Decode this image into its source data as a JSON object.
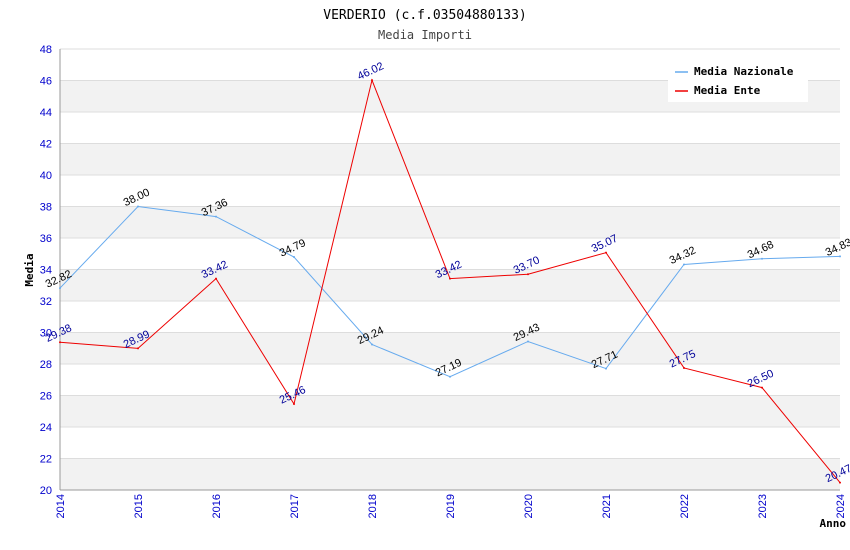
{
  "chart_data": {
    "type": "line",
    "title": "VERDERIO (c.f.03504880133)",
    "subtitle": "Media Importi",
    "xlabel": "Anno",
    "ylabel": "Media",
    "x": [
      "2014",
      "2015",
      "2016",
      "2017",
      "2018",
      "2019",
      "2020",
      "2021",
      "2022",
      "2023",
      "2024"
    ],
    "ylim": [
      20,
      48
    ],
    "yticks": [
      20,
      22,
      24,
      26,
      28,
      30,
      32,
      34,
      36,
      38,
      40,
      42,
      44,
      46,
      48
    ],
    "grid": true,
    "legend_position": "top-right",
    "series": [
      {
        "name": "Media Nazionale",
        "color": "#66aaee",
        "label_color": "#000000",
        "values": [
          32.82,
          38.0,
          37.36,
          34.79,
          29.24,
          27.19,
          29.43,
          27.71,
          34.32,
          34.68,
          34.83
        ],
        "labels": [
          "32.82",
          "38.00",
          "37.36",
          "34.79",
          "29.24",
          "27.19",
          "29.43",
          "27.71",
          "34.32",
          "34.68",
          "34.83"
        ]
      },
      {
        "name": "Media Ente",
        "color": "#ee0000",
        "label_color": "#000099",
        "values": [
          29.38,
          28.99,
          33.42,
          25.46,
          46.02,
          33.42,
          33.7,
          35.07,
          27.75,
          26.5,
          20.47
        ],
        "labels": [
          "29.38",
          "28.99",
          "33.42",
          "25.46",
          "46.02",
          "33.42",
          "33.70",
          "35.07",
          "27.75",
          "26.50",
          "20.47"
        ]
      }
    ]
  }
}
